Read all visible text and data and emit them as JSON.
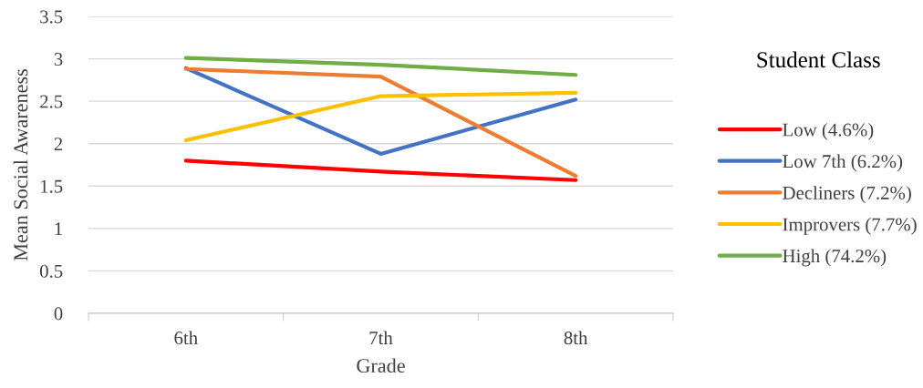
{
  "chart_data": {
    "type": "line",
    "xlabel": "Grade",
    "ylabel": "Mean Social Awareness",
    "legend_title": "Student Class",
    "categories": [
      "6th",
      "7th",
      "8th"
    ],
    "series": [
      {
        "name": "Low (4.6%)",
        "color": "#ff0000",
        "values": [
          1.8,
          1.67,
          1.57
        ]
      },
      {
        "name": "Low 7th (6.2%)",
        "color": "#4472c4",
        "values": [
          2.89,
          1.88,
          2.52
        ]
      },
      {
        "name": "Decliners (7.2%)",
        "color": "#ed7d31",
        "values": [
          2.88,
          2.79,
          1.62
        ]
      },
      {
        "name": "Improvers (7.7%)",
        "color": "#ffc000",
        "values": [
          2.04,
          2.56,
          2.6
        ]
      },
      {
        "name": "High (74.2%)",
        "color": "#70ad47",
        "values": [
          3.01,
          2.93,
          2.81
        ]
      }
    ],
    "ylim": [
      0,
      3.5
    ],
    "yticks": [
      0,
      0.5,
      1,
      1.5,
      2,
      2.5,
      3,
      3.5
    ],
    "grid": "y",
    "legend": "right",
    "marker": "none",
    "line_style": "solid"
  }
}
